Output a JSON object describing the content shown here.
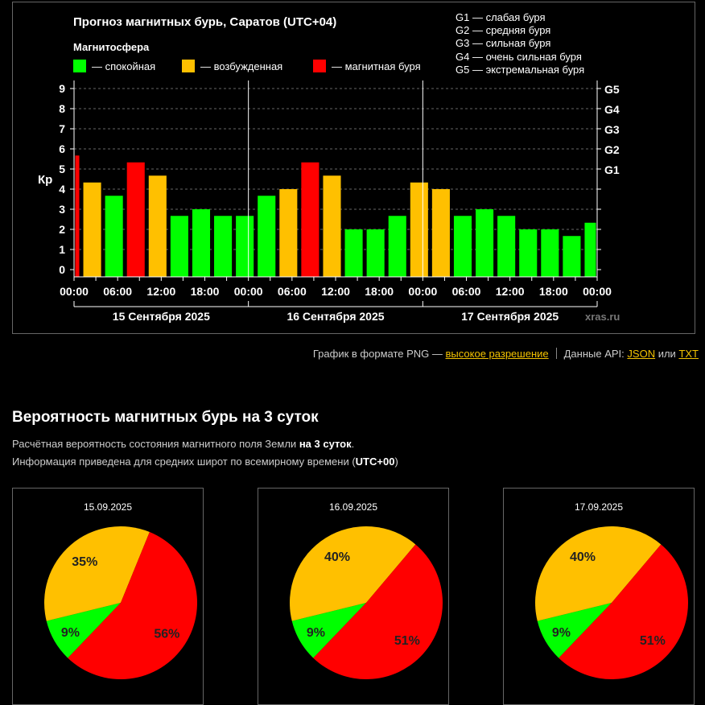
{
  "chart_data": {
    "type": "bar",
    "title": "Прогноз магнитных бурь, Саратов (UTC+04)",
    "ylabel": "Кр",
    "ylim": [
      0,
      9
    ],
    "yticks": [
      "0",
      "1",
      "2",
      "3",
      "4",
      "5",
      "6",
      "7",
      "8",
      "9"
    ],
    "gscale": [
      {
        "g": "G1",
        "kp": 5
      },
      {
        "g": "G2",
        "kp": 6
      },
      {
        "g": "G3",
        "kp": 7
      },
      {
        "g": "G4",
        "kp": 8
      },
      {
        "g": "G5",
        "kp": 9
      }
    ],
    "legend_title": "Магнитосфера",
    "legend": [
      {
        "label": "— спокойная",
        "color": "#00ff00"
      },
      {
        "label": "— возбужденная",
        "color": "#ffc000"
      },
      {
        "label": "— магнитная буря",
        "color": "#ff0000"
      }
    ],
    "g_legend": [
      "G1 — слабая буря",
      "G2 — средняя буря",
      "G3 — сильная буря",
      "G4 — очень сильная буря",
      "G5 — экстремальная буря"
    ],
    "xticks": [
      "00:00",
      "06:00",
      "12:00",
      "18:00",
      "00:00",
      "06:00",
      "12:00",
      "18:00",
      "00:00",
      "06:00",
      "12:00",
      "18:00",
      "00:00"
    ],
    "days": [
      "15 Сентября 2025",
      "16 Сентября 2025",
      "17 Сентября 2025"
    ],
    "watermark": "xras.ru",
    "bars": [
      {
        "start_hour": 0,
        "end_hour": 1,
        "kp": 5.67,
        "level": "storm"
      },
      {
        "start_hour": 1,
        "end_hour": 4,
        "kp": 4.33,
        "level": "active"
      },
      {
        "start_hour": 4,
        "end_hour": 7,
        "kp": 3.67,
        "level": "quiet"
      },
      {
        "start_hour": 7,
        "end_hour": 10,
        "kp": 5.33,
        "level": "storm"
      },
      {
        "start_hour": 10,
        "end_hour": 13,
        "kp": 4.67,
        "level": "active"
      },
      {
        "start_hour": 13,
        "end_hour": 16,
        "kp": 2.67,
        "level": "quiet"
      },
      {
        "start_hour": 16,
        "end_hour": 19,
        "kp": 3.0,
        "level": "quiet"
      },
      {
        "start_hour": 19,
        "end_hour": 22,
        "kp": 2.67,
        "level": "quiet"
      },
      {
        "start_hour": 22,
        "end_hour": 25,
        "kp": 2.67,
        "level": "quiet"
      },
      {
        "start_hour": 25,
        "end_hour": 28,
        "kp": 3.67,
        "level": "quiet"
      },
      {
        "start_hour": 28,
        "end_hour": 31,
        "kp": 4.0,
        "level": "active"
      },
      {
        "start_hour": 31,
        "end_hour": 34,
        "kp": 5.33,
        "level": "storm"
      },
      {
        "start_hour": 34,
        "end_hour": 37,
        "kp": 4.67,
        "level": "active"
      },
      {
        "start_hour": 37,
        "end_hour": 40,
        "kp": 2.0,
        "level": "quiet"
      },
      {
        "start_hour": 40,
        "end_hour": 43,
        "kp": 2.0,
        "level": "quiet"
      },
      {
        "start_hour": 43,
        "end_hour": 46,
        "kp": 2.67,
        "level": "quiet"
      },
      {
        "start_hour": 46,
        "end_hour": 49,
        "kp": 4.33,
        "level": "active"
      },
      {
        "start_hour": 49,
        "end_hour": 52,
        "kp": 4.0,
        "level": "active"
      },
      {
        "start_hour": 52,
        "end_hour": 55,
        "kp": 2.67,
        "level": "quiet"
      },
      {
        "start_hour": 55,
        "end_hour": 58,
        "kp": 3.0,
        "level": "quiet"
      },
      {
        "start_hour": 58,
        "end_hour": 61,
        "kp": 2.67,
        "level": "quiet"
      },
      {
        "start_hour": 61,
        "end_hour": 64,
        "kp": 2.0,
        "level": "quiet"
      },
      {
        "start_hour": 64,
        "end_hour": 67,
        "kp": 2.0,
        "level": "quiet"
      },
      {
        "start_hour": 67,
        "end_hour": 70,
        "kp": 1.67,
        "level": "quiet"
      },
      {
        "start_hour": 70,
        "end_hour": 72,
        "kp": 2.33,
        "level": "quiet"
      }
    ],
    "colors": {
      "quiet": "#00ff00",
      "active": "#ffc000",
      "storm": "#ff0000",
      "grid": "#666666"
    },
    "pies": [
      {
        "date": "15.09.2025",
        "slices": [
          {
            "label": "9%",
            "value": 9,
            "color": "#00ff00"
          },
          {
            "label": "35%",
            "value": 35,
            "color": "#ffc000"
          },
          {
            "label": "56%",
            "value": 56,
            "color": "#ff0000"
          }
        ]
      },
      {
        "date": "16.09.2025",
        "slices": [
          {
            "label": "9%",
            "value": 9,
            "color": "#00ff00"
          },
          {
            "label": "40%",
            "value": 40,
            "color": "#ffc000"
          },
          {
            "label": "51%",
            "value": 51,
            "color": "#ff0000"
          }
        ]
      },
      {
        "date": "17.09.2025",
        "slices": [
          {
            "label": "9%",
            "value": 9,
            "color": "#00ff00"
          },
          {
            "label": "40%",
            "value": 40,
            "color": "#ffc000"
          },
          {
            "label": "51%",
            "value": 51,
            "color": "#ff0000"
          }
        ]
      }
    ]
  },
  "links": {
    "png_text": "График в формате PNG —",
    "hires": "высокое разрешение",
    "api_text": "Данные API:",
    "json": "JSON",
    "or": "или",
    "txt": "TXT"
  },
  "probability": {
    "title": "Вероятность магнитных бурь на 3 суток",
    "desc1_a": "Расчётная вероятность состояния магнитного поля Земли",
    "desc1_b": "на 3 суток",
    "desc1_c": ".",
    "desc2_a": "Информация приведена для средних широт по всемирному времени (",
    "desc2_b": "UTC+00",
    "desc2_c": ")"
  }
}
